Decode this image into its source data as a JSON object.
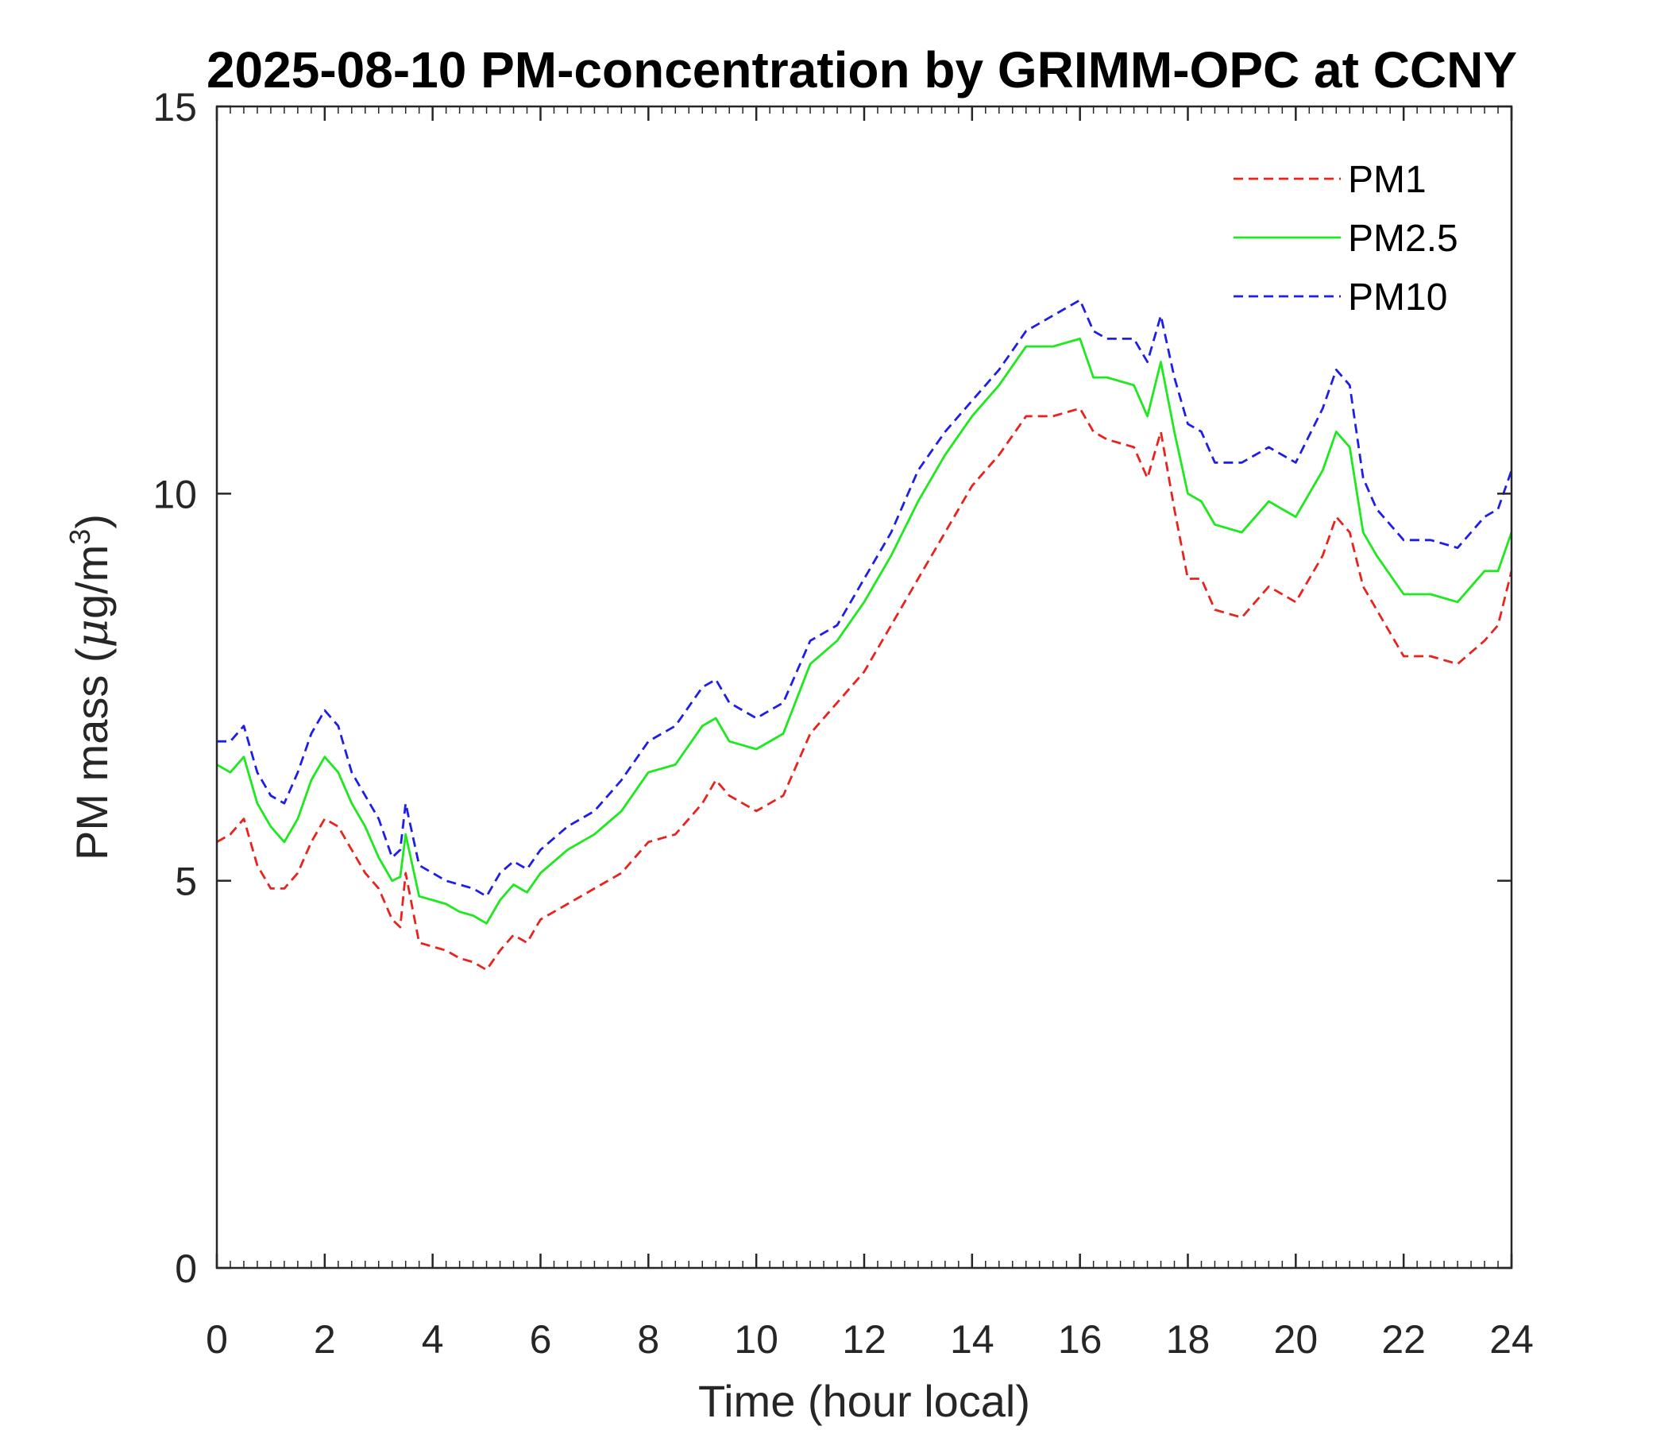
{
  "chart_data": {
    "type": "line",
    "title": "2025-08-10 PM-concentration by GRIMM-OPC at CCNY",
    "xlabel": "Time (hour local)",
    "ylabel": "PM mass (μg/m³)",
    "ylabel_parts": {
      "main": "PM mass (",
      "mu": "μ",
      "g": "g/m",
      "sup": "3",
      "close": ")"
    },
    "xlim": [
      0,
      24
    ],
    "ylim": [
      0,
      15
    ],
    "xticks": [
      "0",
      "2",
      "4",
      "6",
      "8",
      "10",
      "12",
      "14",
      "16",
      "18",
      "20",
      "22",
      "24"
    ],
    "yticks": [
      "0",
      "5",
      "10",
      "15"
    ],
    "legend_position": "top-right",
    "x": [
      0,
      0.25,
      0.5,
      0.75,
      1,
      1.25,
      1.5,
      1.75,
      2,
      2.25,
      2.5,
      2.75,
      3,
      3.25,
      3.4,
      3.5,
      3.75,
      4,
      4.25,
      4.5,
      4.75,
      5,
      5.25,
      5.5,
      5.75,
      6,
      6.5,
      7,
      7.5,
      8,
      8.5,
      9,
      9.25,
      9.5,
      10,
      10.5,
      11,
      11.5,
      12,
      12.5,
      13,
      13.5,
      14,
      14.5,
      15,
      15.5,
      16,
      16.25,
      16.5,
      17,
      17.25,
      17.5,
      17.75,
      18,
      18.25,
      18.5,
      19,
      19.5,
      20,
      20.5,
      20.75,
      21,
      21.25,
      21.5,
      22,
      22.5,
      23,
      23.5,
      23.75,
      24
    ],
    "series": [
      {
        "name": "PM1",
        "color": "#e8231e",
        "dash": "dashed",
        "values": [
          5.5,
          5.6,
          5.8,
          5.2,
          4.9,
          4.9,
          5.1,
          5.5,
          5.8,
          5.7,
          5.4,
          5.1,
          4.9,
          4.5,
          4.4,
          5.1,
          4.2,
          4.15,
          4.1,
          4.0,
          3.95,
          3.85,
          4.1,
          4.3,
          4.2,
          4.5,
          4.7,
          4.9,
          5.1,
          5.5,
          5.6,
          6.0,
          6.3,
          6.1,
          5.9,
          6.1,
          6.9,
          7.3,
          7.7,
          8.3,
          8.9,
          9.5,
          10.1,
          10.5,
          11.0,
          11.0,
          11.1,
          10.8,
          10.7,
          10.6,
          10.2,
          10.8,
          9.8,
          8.9,
          8.9,
          8.5,
          8.4,
          8.8,
          8.6,
          9.2,
          9.7,
          9.5,
          8.8,
          8.5,
          7.9,
          7.9,
          7.8,
          8.1,
          8.3,
          9.0
        ]
      },
      {
        "name": "PM2.5",
        "color": "#1ee81e",
        "dash": "solid",
        "values": [
          6.5,
          6.4,
          6.6,
          6.0,
          5.7,
          5.5,
          5.8,
          6.3,
          6.6,
          6.4,
          6.0,
          5.7,
          5.3,
          5.0,
          5.05,
          5.6,
          4.8,
          4.75,
          4.7,
          4.6,
          4.55,
          4.45,
          4.75,
          4.95,
          4.85,
          5.1,
          5.4,
          5.6,
          5.9,
          6.4,
          6.5,
          7.0,
          7.1,
          6.8,
          6.7,
          6.9,
          7.8,
          8.1,
          8.6,
          9.2,
          9.9,
          10.5,
          11.0,
          11.4,
          11.9,
          11.9,
          12.0,
          11.5,
          11.5,
          11.4,
          11.0,
          11.7,
          10.8,
          10.0,
          9.9,
          9.6,
          9.5,
          9.9,
          9.7,
          10.3,
          10.8,
          10.6,
          9.5,
          9.2,
          8.7,
          8.7,
          8.6,
          9.0,
          9.0,
          9.5
        ]
      },
      {
        "name": "PM10",
        "color": "#1e1ee8",
        "dash": "dashed",
        "values": [
          6.8,
          6.8,
          7.0,
          6.4,
          6.1,
          6.0,
          6.4,
          6.9,
          7.2,
          7.0,
          6.4,
          6.1,
          5.8,
          5.3,
          5.4,
          6.0,
          5.2,
          5.1,
          5.0,
          4.95,
          4.9,
          4.8,
          5.1,
          5.25,
          5.15,
          5.4,
          5.7,
          5.9,
          6.3,
          6.8,
          7.0,
          7.5,
          7.6,
          7.3,
          7.1,
          7.3,
          8.1,
          8.3,
          8.9,
          9.5,
          10.3,
          10.8,
          11.2,
          11.6,
          12.1,
          12.3,
          12.5,
          12.1,
          12.0,
          12.0,
          11.7,
          12.3,
          11.5,
          10.9,
          10.8,
          10.4,
          10.4,
          10.6,
          10.4,
          11.1,
          11.6,
          11.4,
          10.2,
          9.8,
          9.4,
          9.4,
          9.3,
          9.7,
          9.8,
          10.3
        ]
      }
    ]
  }
}
